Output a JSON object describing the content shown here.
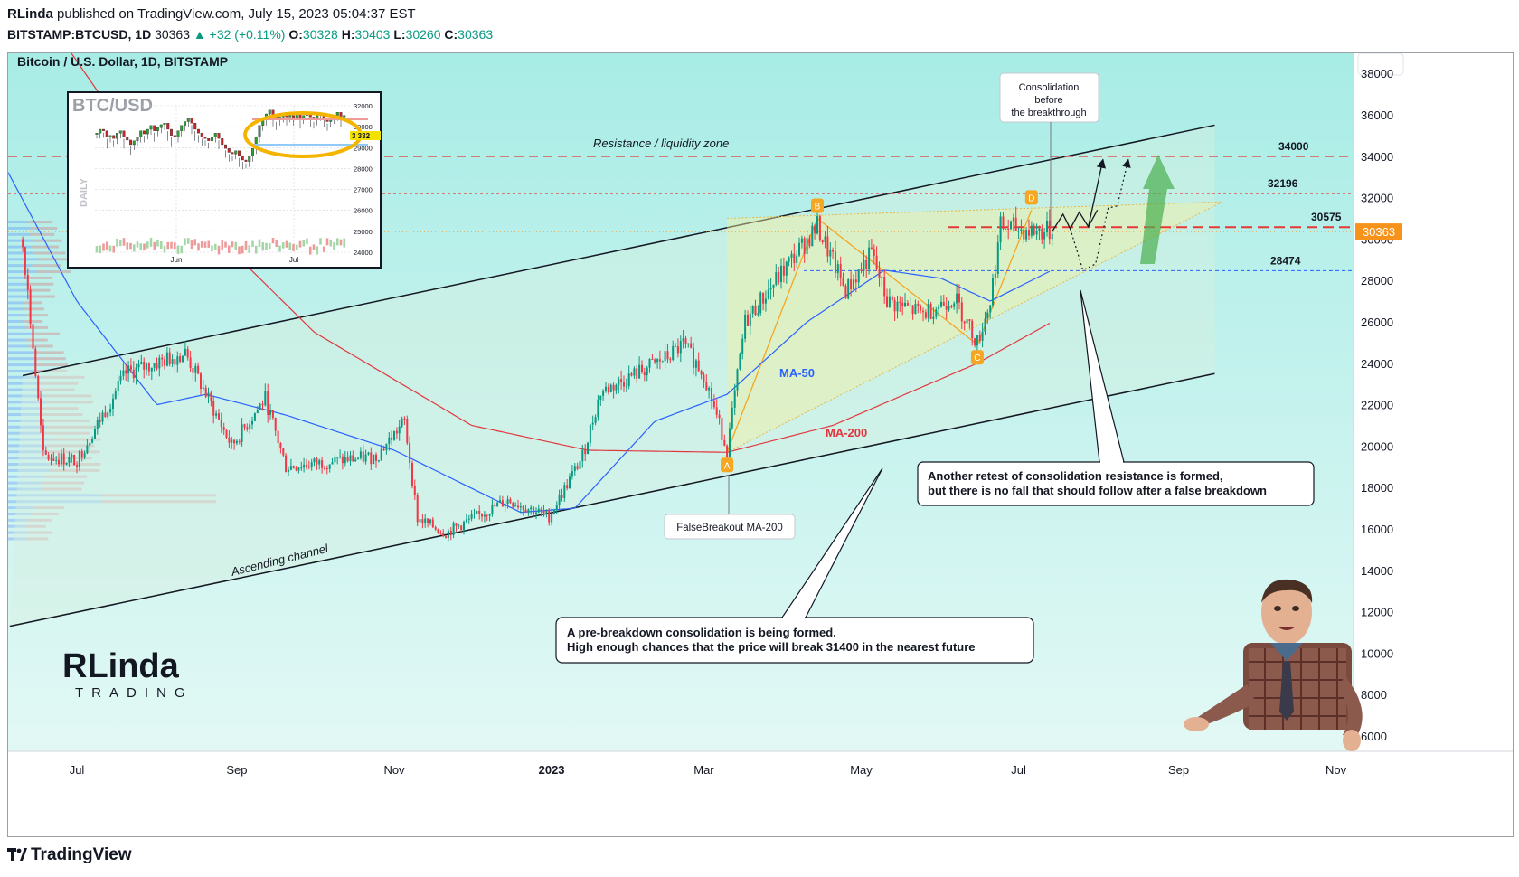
{
  "header": {
    "publisher": "RLinda",
    "published_text": " published on TradingView.com, July 15, 2023 05:04:37 EST",
    "symbol": "BITSTAMP:BTCUSD, 1D",
    "last": "30363",
    "change": "▲ +32 (+0.11%)",
    "o_label": "O:",
    "o": "30328",
    "h_label": "H:",
    "h": "30403",
    "l_label": "L:",
    "l": "30260",
    "c_label": "C:",
    "c": "30363"
  },
  "footer": {
    "brand": "TradingView"
  },
  "colors": {
    "bg_top": "#a8ece6",
    "bg_bottom": "#e6f9f6",
    "up": "#089981",
    "down": "#f23645",
    "ma50": "#2962ff",
    "ma200": "#e0383e",
    "pattern": "#f5a623",
    "resistance": "#e53935",
    "last_price": "#f7931a"
  },
  "chart_data": {
    "type": "candlestick",
    "title": "Bitcoin / U.S. Dollar, 1D, BITSTAMP",
    "x_ticks": [
      "Jul",
      "Sep",
      "Nov",
      "2023",
      "Mar",
      "May",
      "Jul",
      "Sep",
      "Nov"
    ],
    "y_ticks": [
      6000,
      8000,
      10000,
      12000,
      14000,
      16000,
      18000,
      20000,
      22000,
      24000,
      26000,
      28000,
      30000,
      32000,
      34000,
      36000,
      38000
    ],
    "ylim": [
      5000,
      38000
    ],
    "price_anchors": [
      {
        "date": "2022-06-10",
        "close": 30000
      },
      {
        "date": "2022-06-18",
        "close": 19500
      },
      {
        "date": "2022-07-01",
        "close": 19300
      },
      {
        "date": "2022-07-20",
        "close": 23500
      },
      {
        "date": "2022-08-12",
        "close": 24500
      },
      {
        "date": "2022-08-30",
        "close": 20000
      },
      {
        "date": "2022-09-12",
        "close": 22300
      },
      {
        "date": "2022-09-20",
        "close": 19000
      },
      {
        "date": "2022-10-25",
        "close": 19500
      },
      {
        "date": "2022-11-05",
        "close": 21200
      },
      {
        "date": "2022-11-10",
        "close": 16500
      },
      {
        "date": "2022-11-21",
        "close": 15800
      },
      {
        "date": "2022-12-15",
        "close": 17400
      },
      {
        "date": "2022-12-31",
        "close": 16600
      },
      {
        "date": "2023-01-13",
        "close": 19500
      },
      {
        "date": "2023-01-20",
        "close": 22600
      },
      {
        "date": "2023-02-15",
        "close": 24300
      },
      {
        "date": "2023-02-21",
        "close": 24900
      },
      {
        "date": "2023-03-01",
        "close": 23500
      },
      {
        "date": "2023-03-10",
        "close": 19800
      },
      {
        "date": "2023-03-17",
        "close": 26000
      },
      {
        "date": "2023-04-01",
        "close": 28500
      },
      {
        "date": "2023-04-14",
        "close": 30600
      },
      {
        "date": "2023-04-25",
        "close": 27500
      },
      {
        "date": "2023-05-05",
        "close": 29300
      },
      {
        "date": "2023-05-11",
        "close": 27000
      },
      {
        "date": "2023-05-25",
        "close": 26400
      },
      {
        "date": "2023-06-06",
        "close": 27200
      },
      {
        "date": "2023-06-15",
        "close": 25000
      },
      {
        "date": "2023-06-20",
        "close": 27000
      },
      {
        "date": "2023-06-24",
        "close": 30600
      },
      {
        "date": "2023-07-06",
        "close": 30400
      },
      {
        "date": "2023-07-14",
        "close": 30363
      }
    ],
    "ma50_anchors": [
      {
        "date": "2022-06-01",
        "value": 34000
      },
      {
        "date": "2022-07-01",
        "value": 27000
      },
      {
        "date": "2022-08-01",
        "value": 22000
      },
      {
        "date": "2022-08-20",
        "value": 22500
      },
      {
        "date": "2022-09-20",
        "value": 21500
      },
      {
        "date": "2022-11-01",
        "value": 19800
      },
      {
        "date": "2022-12-20",
        "value": 16800
      },
      {
        "date": "2023-01-10",
        "value": 17000
      },
      {
        "date": "2023-02-10",
        "value": 21200
      },
      {
        "date": "2023-03-10",
        "value": 22500
      },
      {
        "date": "2023-04-10",
        "value": 26000
      },
      {
        "date": "2023-05-10",
        "value": 28500
      },
      {
        "date": "2023-06-01",
        "value": 28100
      },
      {
        "date": "2023-06-20",
        "value": 27000
      },
      {
        "date": "2023-07-14",
        "value": 28500
      }
    ],
    "ma200_anchors": [
      {
        "date": "2022-06-01",
        "value": 44000
      },
      {
        "date": "2022-08-01",
        "value": 33000
      },
      {
        "date": "2022-10-01",
        "value": 25500
      },
      {
        "date": "2022-12-01",
        "value": 21000
      },
      {
        "date": "2023-01-15",
        "value": 19800
      },
      {
        "date": "2023-03-10",
        "value": 19700
      },
      {
        "date": "2023-04-20",
        "value": 21000
      },
      {
        "date": "2023-06-15",
        "value": 24000
      },
      {
        "date": "2023-07-14",
        "value": 26000
      }
    ],
    "channel_upper": [
      {
        "date": "2022-06-10",
        "value": 23400
      },
      {
        "date": "2023-09-15",
        "value": 35500
      }
    ],
    "channel_lower": [
      {
        "date": "2022-06-05",
        "value": 11300
      },
      {
        "date": "2023-09-15",
        "value": 23500
      }
    ],
    "horizontal_levels": [
      {
        "value": 34000,
        "label": "34000"
      },
      {
        "value": 32196,
        "label": "32196"
      },
      {
        "value": 30575,
        "label": "30575"
      },
      {
        "value": 28474,
        "label": "28474"
      }
    ],
    "pattern_points": [
      {
        "label": "A",
        "date": "2023-03-10",
        "value": 19700
      },
      {
        "label": "B",
        "date": "2023-04-14",
        "value": 31000
      },
      {
        "label": "C",
        "date": "2023-06-15",
        "value": 24900
      },
      {
        "label": "D",
        "date": "2023-07-06",
        "value": 31400
      }
    ],
    "last_price_label": "30363",
    "annotations": {
      "resistance_zone": "Resistance / liquidity zone",
      "consolidation": [
        "Consolidation",
        "before",
        "the breakthrough"
      ],
      "false_breakout": "FalseBreakout MA-200",
      "ma50": "MA-50",
      "ma200": "MA-200",
      "channel": "Ascending channel",
      "retest": [
        "Another retest of consolidation resistance is formed,",
        "but there is no fall that should follow after a false breakdown"
      ],
      "prebreakdown": [
        "A pre-breakdown consolidation is being formed.",
        "High enough chances that the price will break 31400 in the nearest future"
      ]
    },
    "inset": {
      "title": "BTC/USD",
      "side_label": "DAILY",
      "x_ticks": [
        "Jun",
        "Jul"
      ],
      "y_ticks": [
        "32000",
        "30000",
        "29000",
        "28000",
        "27000",
        "26000",
        "25000",
        "24000"
      ],
      "highlight_label": "3 332"
    },
    "brand_logo": {
      "line1": "RLinda",
      "line2": "TRADING"
    }
  }
}
